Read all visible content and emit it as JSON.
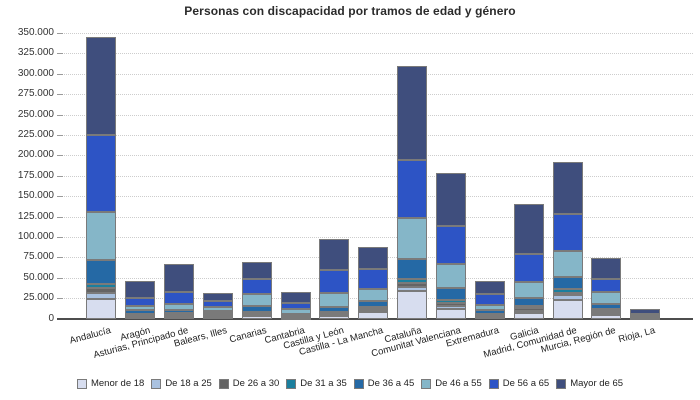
{
  "chart_data": {
    "type": "bar",
    "stacked": true,
    "title": "Personas con discapacidad por tramos de edad y género",
    "categories": [
      "Andalucía",
      "Aragón",
      "Asturias, Principado de",
      "Balears, Illes",
      "Canarias",
      "Cantabria",
      "Castilla y León",
      "Castilla - La Mancha",
      "Cataluña",
      "Comunitat Valenciana",
      "Extremadura",
      "Galicia",
      "Madrid, Comunidad de",
      "Murcia, Región de",
      "Rioja, La"
    ],
    "series": [
      {
        "name": "Menor de 18",
        "color": "#d7ddef",
        "values": [
          23500,
          1500,
          1800,
          2500,
          2800,
          1000,
          3000,
          7700,
          33500,
          12300,
          2500,
          7400,
          22500,
          4900,
          250
        ]
      },
      {
        "name": "De 18 a 25",
        "color": "#aac2e0",
        "values": [
          7400,
          1500,
          1500,
          1200,
          1700,
          600,
          1800,
          3200,
          5300,
          3300,
          1200,
          2500,
          6100,
          2500,
          250
        ]
      },
      {
        "name": "De 26 a 30",
        "color": "#646464",
        "values": [
          6000,
          1500,
          1500,
          1200,
          2400,
          700,
          1800,
          1500,
          4900,
          3300,
          1200,
          2500,
          3300,
          1600,
          250
        ]
      },
      {
        "name": "De 31 a 35",
        "color": "#1b7f9e",
        "values": [
          5700,
          1500,
          1800,
          1500,
          1600,
          900,
          1800,
          1700,
          4900,
          4100,
          1300,
          3300,
          4900,
          2500,
          350
        ]
      },
      {
        "name": "De 36 a 45",
        "color": "#2569a5",
        "values": [
          28800,
          4000,
          3700,
          3300,
          7400,
          2200,
          5800,
          6900,
          24500,
          13900,
          4900,
          9000,
          14300,
          7000,
          800
        ]
      },
      {
        "name": "De 46 a 55",
        "color": "#85b6c8",
        "values": [
          59200,
          5500,
          7400,
          4900,
          14700,
          5800,
          17200,
          15000,
          49800,
          29800,
          6100,
          20400,
          31500,
          13500,
          1500
        ]
      },
      {
        "name": "De 56 a 65",
        "color": "#2d54c5",
        "values": [
          94000,
          9500,
          14400,
          7400,
          18400,
          8500,
          27700,
          24300,
          71600,
          47000,
          13500,
          34000,
          45800,
          16300,
          2800
        ]
      },
      {
        "name": "Mayor de 65",
        "color": "#3f4e7d",
        "values": [
          120500,
          21000,
          35000,
          9500,
          20000,
          13000,
          38500,
          27400,
          115600,
          64200,
          15100,
          61300,
          63700,
          25400,
          5500
        ]
      }
    ],
    "ylim": [
      0,
      350000
    ],
    "ytick_step": 25000,
    "yticks": [
      {
        "value": 0,
        "label": "0"
      },
      {
        "value": 25000,
        "label": "25.000"
      },
      {
        "value": 50000,
        "label": "50.000"
      },
      {
        "value": 75000,
        "label": "75.000"
      },
      {
        "value": 100000,
        "label": "100.000"
      },
      {
        "value": 125000,
        "label": "125.000"
      },
      {
        "value": 150000,
        "label": "150.000"
      },
      {
        "value": 175000,
        "label": "175.000"
      },
      {
        "value": 200000,
        "label": "200.000"
      },
      {
        "value": 225000,
        "label": "225.000"
      },
      {
        "value": 250000,
        "label": "250.000"
      },
      {
        "value": 275000,
        "label": "275.000"
      },
      {
        "value": 300000,
        "label": "300.000"
      },
      {
        "value": 325000,
        "label": "325.000"
      },
      {
        "value": 350000,
        "label": "350.000"
      }
    ],
    "grid": "horizontal-dotted",
    "legend_position": "bottom",
    "xlabel": "",
    "ylabel": ""
  },
  "colors": {
    "background": "#ffffff",
    "axis_line": "#4d4d4d",
    "gridline": "#cdcdcd",
    "segment_border": "#7a7a7a",
    "text": "#222222",
    "title_text": "#2b2b2b"
  }
}
